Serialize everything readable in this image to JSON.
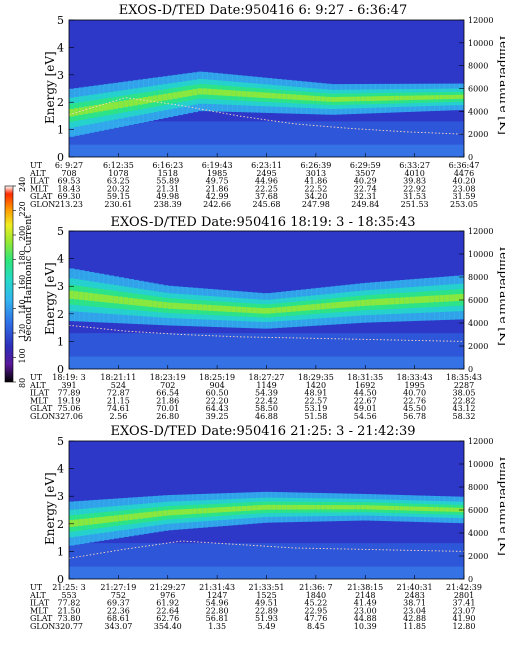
{
  "colorbar": {
    "label": "Second Harmonic Current",
    "ticks": [
      "80",
      "100",
      "120",
      "140",
      "160",
      "180",
      "200",
      "220",
      "240"
    ],
    "colors": [
      "#000000",
      "#5a189a",
      "#2d2db8",
      "#2f6fe6",
      "#33b5f0",
      "#25d9c8",
      "#2ee67a",
      "#9be830",
      "#eeee22",
      "#ff9a00",
      "#ff2a00",
      "#ffffff"
    ]
  },
  "chart_data": [
    {
      "type": "heatmap",
      "title": "EXOS-D/TED   Date:950416  6: 9:27 - 6:36:47",
      "ylabel": "Energy [eV]",
      "y2label": "Temperature [K]",
      "ylim": [
        0,
        5
      ],
      "y2lim": [
        0,
        12000
      ],
      "yticks": [
        "0",
        "1",
        "2",
        "3",
        "4",
        "5"
      ],
      "y2ticks": [
        "0",
        "2000",
        "4000",
        "6000",
        "8000",
        "10000",
        "12000"
      ],
      "band": {
        "energy_ev": [
          1.6,
          2.4,
          2.1,
          2.2
        ],
        "width_ev": [
          0.55,
          0.45,
          0.35,
          0.3
        ]
      },
      "temperature_k": [
        3700,
        5200,
        4500,
        3600,
        2900,
        2500,
        2200,
        2000
      ],
      "ephem_rows": [
        {
          "label": "UT",
          "values": [
            "6: 9:27",
            "6:12:35",
            "6:16:23",
            "6:19:43",
            "6:23:11",
            "6:26:39",
            "6:29:59",
            "6:33:27",
            "6:36:47"
          ]
        },
        {
          "label": "ALT",
          "values": [
            "708",
            "1078",
            "1518",
            "1985",
            "2495",
            "3013",
            "3507",
            "4010",
            "4476"
          ]
        },
        {
          "label": "ILAT",
          "values": [
            "69.53",
            "63.25",
            "55.89",
            "49.75",
            "44.96",
            "41.86",
            "40.29",
            "39.83",
            "40.20"
          ]
        },
        {
          "label": "MLT",
          "values": [
            "18.43",
            "20.32",
            "21.31",
            "21.86",
            "22.25",
            "22.52",
            "22.74",
            "22.92",
            "23.08"
          ]
        },
        {
          "label": "GLAT",
          "values": [
            "69.30",
            "59.15",
            "49.98",
            "42.99",
            "37.68",
            "34.20",
            "32.31",
            "31.53",
            "31.59"
          ]
        },
        {
          "label": "GLON",
          "values": [
            "213.23",
            "230.61",
            "238.39",
            "242.66",
            "245.68",
            "247.98",
            "249.84",
            "251.53",
            "253.05"
          ]
        }
      ]
    },
    {
      "type": "heatmap",
      "title": "EXOS-D/TED   Date:950416  18:19: 3 - 18:35:43",
      "ylabel": "Energy [eV]",
      "y2label": "Temperature [K]",
      "ylim": [
        0,
        5
      ],
      "y2lim": [
        0,
        12000
      ],
      "yticks": [
        "0",
        "1",
        "2",
        "3",
        "4",
        "5"
      ],
      "y2ticks": [
        "0",
        "2000",
        "4000",
        "6000",
        "8000",
        "10000",
        "12000"
      ],
      "band": {
        "energy_ev": [
          2.7,
          2.3,
          2.1,
          2.4,
          2.6
        ],
        "width_ev": [
          0.6,
          0.45,
          0.4,
          0.45,
          0.5
        ]
      },
      "temperature_k": [
        3800,
        3300,
        3000,
        2800,
        2700,
        2600,
        2500,
        2400
      ],
      "ephem_rows": [
        {
          "label": "UT",
          "values": [
            "18:19: 3",
            "18:21:11",
            "18:23:19",
            "18:25:19",
            "18:27:27",
            "18:29:35",
            "18:31:35",
            "18:33:43",
            "18:35:43"
          ]
        },
        {
          "label": "ALT",
          "values": [
            "391",
            "524",
            "702",
            "904",
            "1149",
            "1420",
            "1692",
            "1995",
            "2287"
          ]
        },
        {
          "label": "ILAT",
          "values": [
            "77.89",
            "72.87",
            "66.54",
            "60.50",
            "54.39",
            "48.91",
            "44.50",
            "40.70",
            "38.05"
          ]
        },
        {
          "label": "MLT",
          "values": [
            "19.19",
            "21.15",
            "21.86",
            "22.20",
            "22.42",
            "22.57",
            "22.67",
            "22.76",
            "22.82"
          ]
        },
        {
          "label": "GLAT",
          "values": [
            "75.06",
            "74.61",
            "70.01",
            "64.43",
            "58.50",
            "53.19",
            "49.01",
            "45.50",
            "43.12"
          ]
        },
        {
          "label": "GLON",
          "values": [
            "327.06",
            "2.56",
            "26.80",
            "39.25",
            "46.88",
            "51.58",
            "54.56",
            "56.78",
            "58.32"
          ]
        }
      ]
    },
    {
      "type": "heatmap",
      "title": "EXOS-D/TED   Date:950416  21:25: 3 - 21:42:39",
      "ylabel": "Energy [eV]",
      "y2label": "Temperature [K]",
      "ylim": [
        0,
        5
      ],
      "y2lim": [
        0,
        12000
      ],
      "yticks": [
        "0",
        "1",
        "2",
        "3",
        "4",
        "5"
      ],
      "y2ticks": [
        "0",
        "2000",
        "4000",
        "6000",
        "8000",
        "10000",
        "12000"
      ],
      "band": {
        "energy_ev": [
          2.0,
          2.4,
          2.6,
          2.6,
          2.5
        ],
        "width_ev": [
          0.5,
          0.4,
          0.35,
          0.3,
          0.3
        ]
      },
      "temperature_k": [
        1800,
        2600,
        3300,
        3000,
        2700,
        2600,
        2500,
        2400
      ],
      "ephem_rows": [
        {
          "label": "UT",
          "values": [
            "21:25: 3",
            "21:27:19",
            "21:29:27",
            "21:31:43",
            "21:33:51",
            "21:36: 7",
            "21:38:15",
            "21:40:31",
            "21:42:39"
          ]
        },
        {
          "label": "ALT",
          "values": [
            "553",
            "752",
            "976",
            "1247",
            "1525",
            "1840",
            "2148",
            "2483",
            "2801"
          ]
        },
        {
          "label": "ILAT",
          "values": [
            "77.82",
            "69.37",
            "61.92",
            "54.96",
            "49.51",
            "45.22",
            "41.49",
            "38.71",
            "37.41"
          ]
        },
        {
          "label": "MLT",
          "values": [
            "21.50",
            "22.36",
            "22.64",
            "22.80",
            "22.89",
            "22.95",
            "23.00",
            "23.04",
            "23.07"
          ]
        },
        {
          "label": "GLAT",
          "values": [
            "73.80",
            "68.61",
            "62.76",
            "56.81",
            "51.93",
            "47.76",
            "44.88",
            "42.88",
            "41.90"
          ]
        },
        {
          "label": "GLON",
          "values": [
            "320.77",
            "343.07",
            "354.40",
            "1.35",
            "5.49",
            "8.45",
            "10.39",
            "11.85",
            "12.80"
          ]
        }
      ]
    }
  ]
}
